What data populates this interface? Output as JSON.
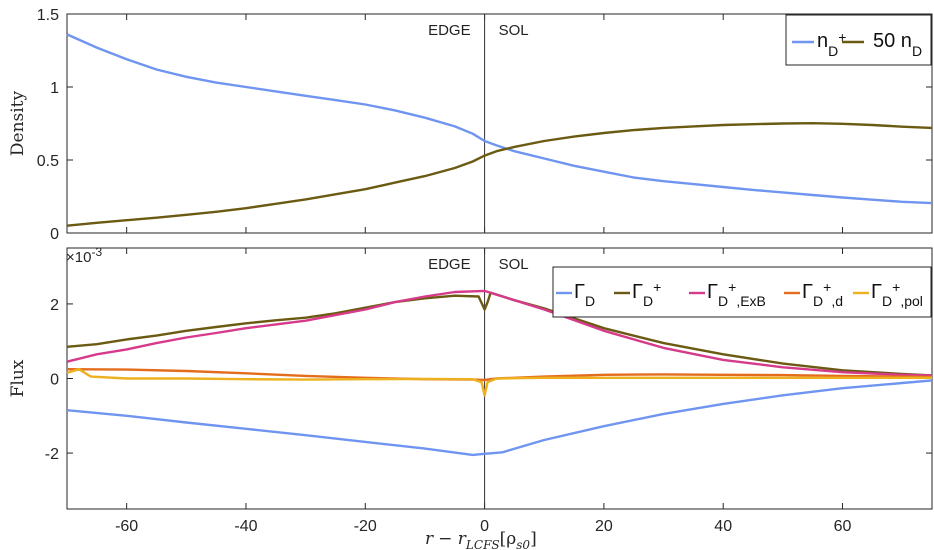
{
  "chart_data": [
    {
      "type": "line",
      "ylabel": "Density",
      "xlim": [
        -70,
        75
      ],
      "ylim": [
        0,
        1.5
      ],
      "yticks": [
        "0",
        "0.5",
        "1",
        "1.5"
      ],
      "annotations": [
        "EDGE",
        "SOL"
      ],
      "legend_position": "top-right",
      "series": [
        {
          "name": "n_D+",
          "label_main": "n",
          "label_sub": "D",
          "label_sup": "+",
          "color": "#6f95f0",
          "x": [
            -70,
            -65,
            -60,
            -55,
            -50,
            -45,
            -40,
            -35,
            -30,
            -25,
            -20,
            -15,
            -10,
            -5,
            -2,
            0,
            2,
            5,
            10,
            15,
            20,
            25,
            30,
            35,
            40,
            45,
            50,
            55,
            60,
            65,
            70,
            75
          ],
          "y": [
            1.36,
            1.27,
            1.19,
            1.12,
            1.07,
            1.03,
            1.0,
            0.97,
            0.94,
            0.91,
            0.88,
            0.84,
            0.79,
            0.73,
            0.68,
            0.63,
            0.6,
            0.56,
            0.51,
            0.46,
            0.42,
            0.38,
            0.355,
            0.335,
            0.315,
            0.295,
            0.278,
            0.26,
            0.243,
            0.228,
            0.214,
            0.205
          ]
        },
        {
          "name": "50 n_D",
          "label_main": "50 n",
          "label_sub": "D",
          "label_sup": "",
          "color": "#6b5a12",
          "x": [
            -70,
            -65,
            -60,
            -55,
            -50,
            -45,
            -40,
            -35,
            -30,
            -25,
            -20,
            -15,
            -10,
            -5,
            -2,
            0,
            2,
            5,
            10,
            15,
            20,
            25,
            30,
            35,
            40,
            45,
            50,
            55,
            60,
            65,
            70,
            75
          ],
          "y": [
            0.05,
            0.07,
            0.088,
            0.105,
            0.125,
            0.145,
            0.17,
            0.2,
            0.23,
            0.265,
            0.3,
            0.345,
            0.39,
            0.445,
            0.49,
            0.53,
            0.56,
            0.59,
            0.63,
            0.66,
            0.685,
            0.705,
            0.72,
            0.73,
            0.74,
            0.745,
            0.75,
            0.752,
            0.748,
            0.74,
            0.728,
            0.72
          ]
        }
      ]
    },
    {
      "type": "line",
      "ylabel": "Flux",
      "exponent_label": "×10",
      "exponent_power": "-3",
      "xlabel_main": "r",
      "xlabel_rest": "− r",
      "xlabel_sub": "LCFS",
      "xlabel_unit": "[ρ",
      "xlabel_unit_sub": "s0",
      "xlabel_close": "]",
      "xlim": [
        -70,
        75
      ],
      "ylim": [
        -3.5,
        3.5
      ],
      "yticks": [
        "-2",
        "0",
        "2"
      ],
      "xticks": [
        "-60",
        "-40",
        "-20",
        "0",
        "20",
        "40",
        "60"
      ],
      "annotations": [
        "EDGE",
        "SOL"
      ],
      "legend_position": "top-right",
      "series": [
        {
          "name": "Γ_D",
          "label_main": "Γ",
          "label_sub": "D",
          "label_sup": "",
          "label_sub2": "",
          "color": "#6f95f0",
          "x": [
            -70,
            -60,
            -50,
            -40,
            -30,
            -20,
            -10,
            -2,
            0,
            3,
            10,
            20,
            30,
            40,
            50,
            60,
            70,
            75
          ],
          "y": [
            -0.85,
            -1.0,
            -1.18,
            -1.35,
            -1.52,
            -1.7,
            -1.88,
            -2.05,
            -2.02,
            -1.98,
            -1.65,
            -1.28,
            -0.95,
            -0.68,
            -0.45,
            -0.26,
            -0.12,
            -0.05
          ]
        },
        {
          "name": "Γ_D+",
          "label_main": "Γ",
          "label_sub": "D",
          "label_sup": "+",
          "label_sub2": "",
          "color": "#6b5a12",
          "x": [
            -70,
            -65,
            -60,
            -55,
            -50,
            -45,
            -40,
            -35,
            -30,
            -25,
            -20,
            -15,
            -10,
            -5,
            -1,
            0,
            0.5,
            1,
            5,
            10,
            20,
            30,
            40,
            50,
            60,
            70,
            75
          ],
          "y": [
            0.85,
            0.92,
            1.05,
            1.15,
            1.28,
            1.38,
            1.48,
            1.56,
            1.63,
            1.75,
            1.9,
            2.05,
            2.15,
            2.22,
            2.2,
            1.85,
            2.05,
            2.3,
            2.1,
            1.88,
            1.35,
            0.95,
            0.65,
            0.4,
            0.22,
            0.12,
            0.08
          ]
        },
        {
          "name": "Γ_D+,ExB",
          "label_main": "Γ",
          "label_sub": "D",
          "label_sup": "+",
          "label_sub2": ",ExB",
          "color": "#d63a8a",
          "x": [
            -70,
            -65,
            -60,
            -55,
            -50,
            -45,
            -40,
            -35,
            -30,
            -25,
            -20,
            -15,
            -10,
            -5,
            0,
            2,
            5,
            10,
            20,
            30,
            40,
            50,
            60,
            70,
            75
          ],
          "y": [
            0.45,
            0.65,
            0.78,
            0.95,
            1.1,
            1.22,
            1.35,
            1.45,
            1.55,
            1.7,
            1.85,
            2.05,
            2.2,
            2.32,
            2.35,
            2.25,
            2.1,
            1.85,
            1.28,
            0.82,
            0.5,
            0.3,
            0.17,
            0.1,
            0.08
          ]
        },
        {
          "name": "Γ_D+,d",
          "label_main": "Γ",
          "label_sub": "D",
          "label_sup": "+",
          "label_sub2": ",d",
          "color": "#e36c1d",
          "x": [
            -70,
            -60,
            -50,
            -40,
            -30,
            -20,
            -10,
            -2,
            0,
            2,
            10,
            20,
            30,
            40,
            50,
            60,
            70,
            75
          ],
          "y": [
            0.25,
            0.24,
            0.2,
            0.14,
            0.07,
            0.02,
            -0.02,
            -0.03,
            -0.04,
            0.0,
            0.05,
            0.1,
            0.11,
            0.1,
            0.09,
            0.07,
            0.05,
            0.04
          ]
        },
        {
          "name": "Γ_D+,pol",
          "label_main": "Γ",
          "label_sub": "D",
          "label_sup": "+",
          "label_sub2": ",pol",
          "color": "#edb120",
          "x": [
            -70,
            -68,
            -66,
            -60,
            -50,
            -40,
            -30,
            -20,
            -10,
            -2,
            -0.5,
            0,
            0.5,
            2,
            10,
            20,
            30,
            40,
            50,
            60,
            70,
            75
          ],
          "y": [
            0.15,
            0.25,
            0.05,
            0.0,
            0.0,
            -0.02,
            -0.03,
            -0.02,
            -0.01,
            -0.02,
            -0.1,
            -0.45,
            -0.1,
            0.0,
            0.02,
            0.02,
            0.02,
            0.02,
            0.02,
            0.02,
            0.02,
            0.02
          ]
        }
      ]
    }
  ]
}
